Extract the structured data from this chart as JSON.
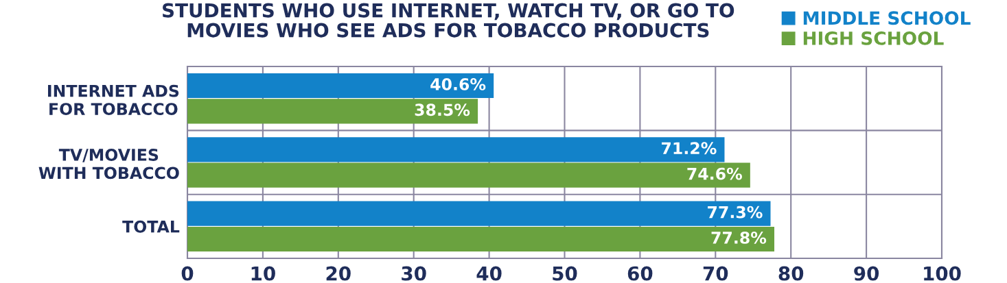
{
  "chart_data": {
    "type": "bar",
    "orientation": "horizontal",
    "title": "STUDENTS WHO USE INTERNET, WATCH TV, OR GO TO\nMOVIES WHO SEE ADS FOR TOBACCO PRODUCTS",
    "categories": [
      "INTERNET ADS\nFOR TOBACCO",
      "TV/MOVIES\nWITH TOBACCO",
      "TOTAL"
    ],
    "series": [
      {
        "name": "MIDDLE SCHOOL",
        "color": "#1282c9",
        "values": [
          40.6,
          71.2,
          77.3
        ],
        "value_labels": [
          "40.6%",
          "71.2%",
          "77.3%"
        ]
      },
      {
        "name": "HIGH SCHOOL",
        "color": "#6aa23f",
        "values": [
          38.5,
          74.6,
          77.8
        ],
        "value_labels": [
          "38.5%",
          "74.6%",
          "77.8%"
        ]
      }
    ],
    "xlim": [
      0,
      100
    ],
    "xticks": [
      0,
      10,
      20,
      30,
      40,
      50,
      60,
      70,
      80,
      90,
      100
    ],
    "grid": true,
    "legend": "top right"
  }
}
